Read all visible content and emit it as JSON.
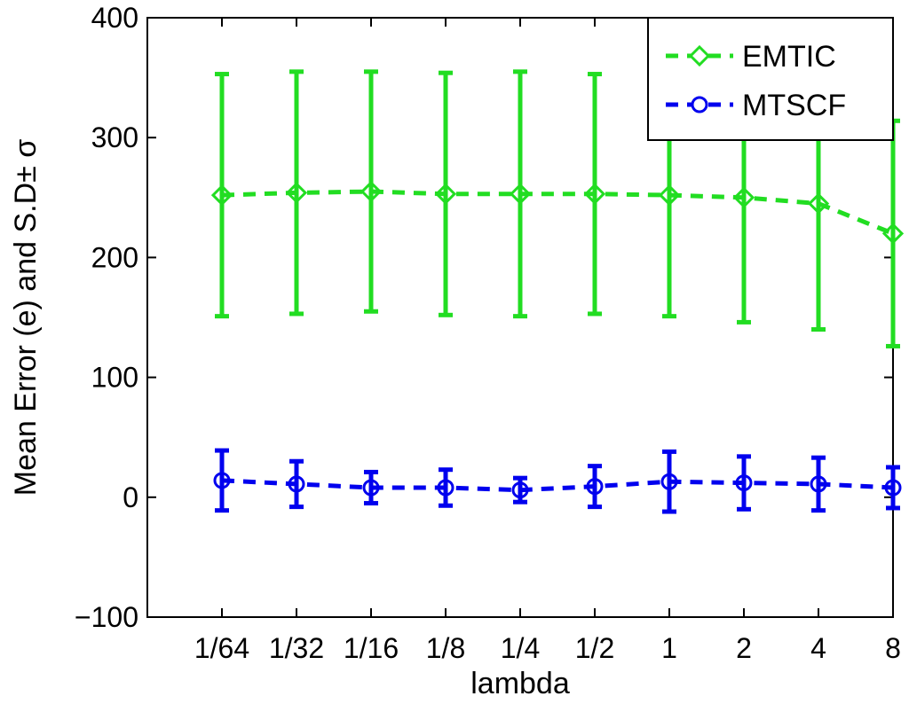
{
  "chart_data": {
    "type": "line",
    "title": "",
    "xlabel": "lambda",
    "ylabel": "Mean Error (e) and S.D± σ",
    "categories": [
      "1/64",
      "1/32",
      "1/16",
      "1/8",
      "1/4",
      "1/2",
      "1",
      "2",
      "4",
      "8"
    ],
    "ylim": [
      -100,
      400
    ],
    "yticks": [
      -100,
      0,
      100,
      200,
      300,
      400
    ],
    "grid": false,
    "legend_position": "top-right",
    "series": [
      {
        "name": "EMTIC",
        "color": "#22dd22",
        "marker": "diamond",
        "line_style": "dashed",
        "values": [
          252,
          254,
          255,
          253,
          253,
          253,
          252,
          250,
          245,
          220
        ],
        "error": [
          101,
          101,
          100,
          101,
          102,
          100,
          101,
          104,
          105,
          94
        ]
      },
      {
        "name": "MTSCF",
        "color": "#0000ee",
        "marker": "circle",
        "line_style": "dashed",
        "values": [
          14,
          11,
          8,
          8,
          6,
          9,
          13,
          12,
          11,
          8
        ],
        "error": [
          25,
          19,
          13,
          15,
          10,
          17,
          25,
          22,
          22,
          17
        ]
      }
    ]
  }
}
